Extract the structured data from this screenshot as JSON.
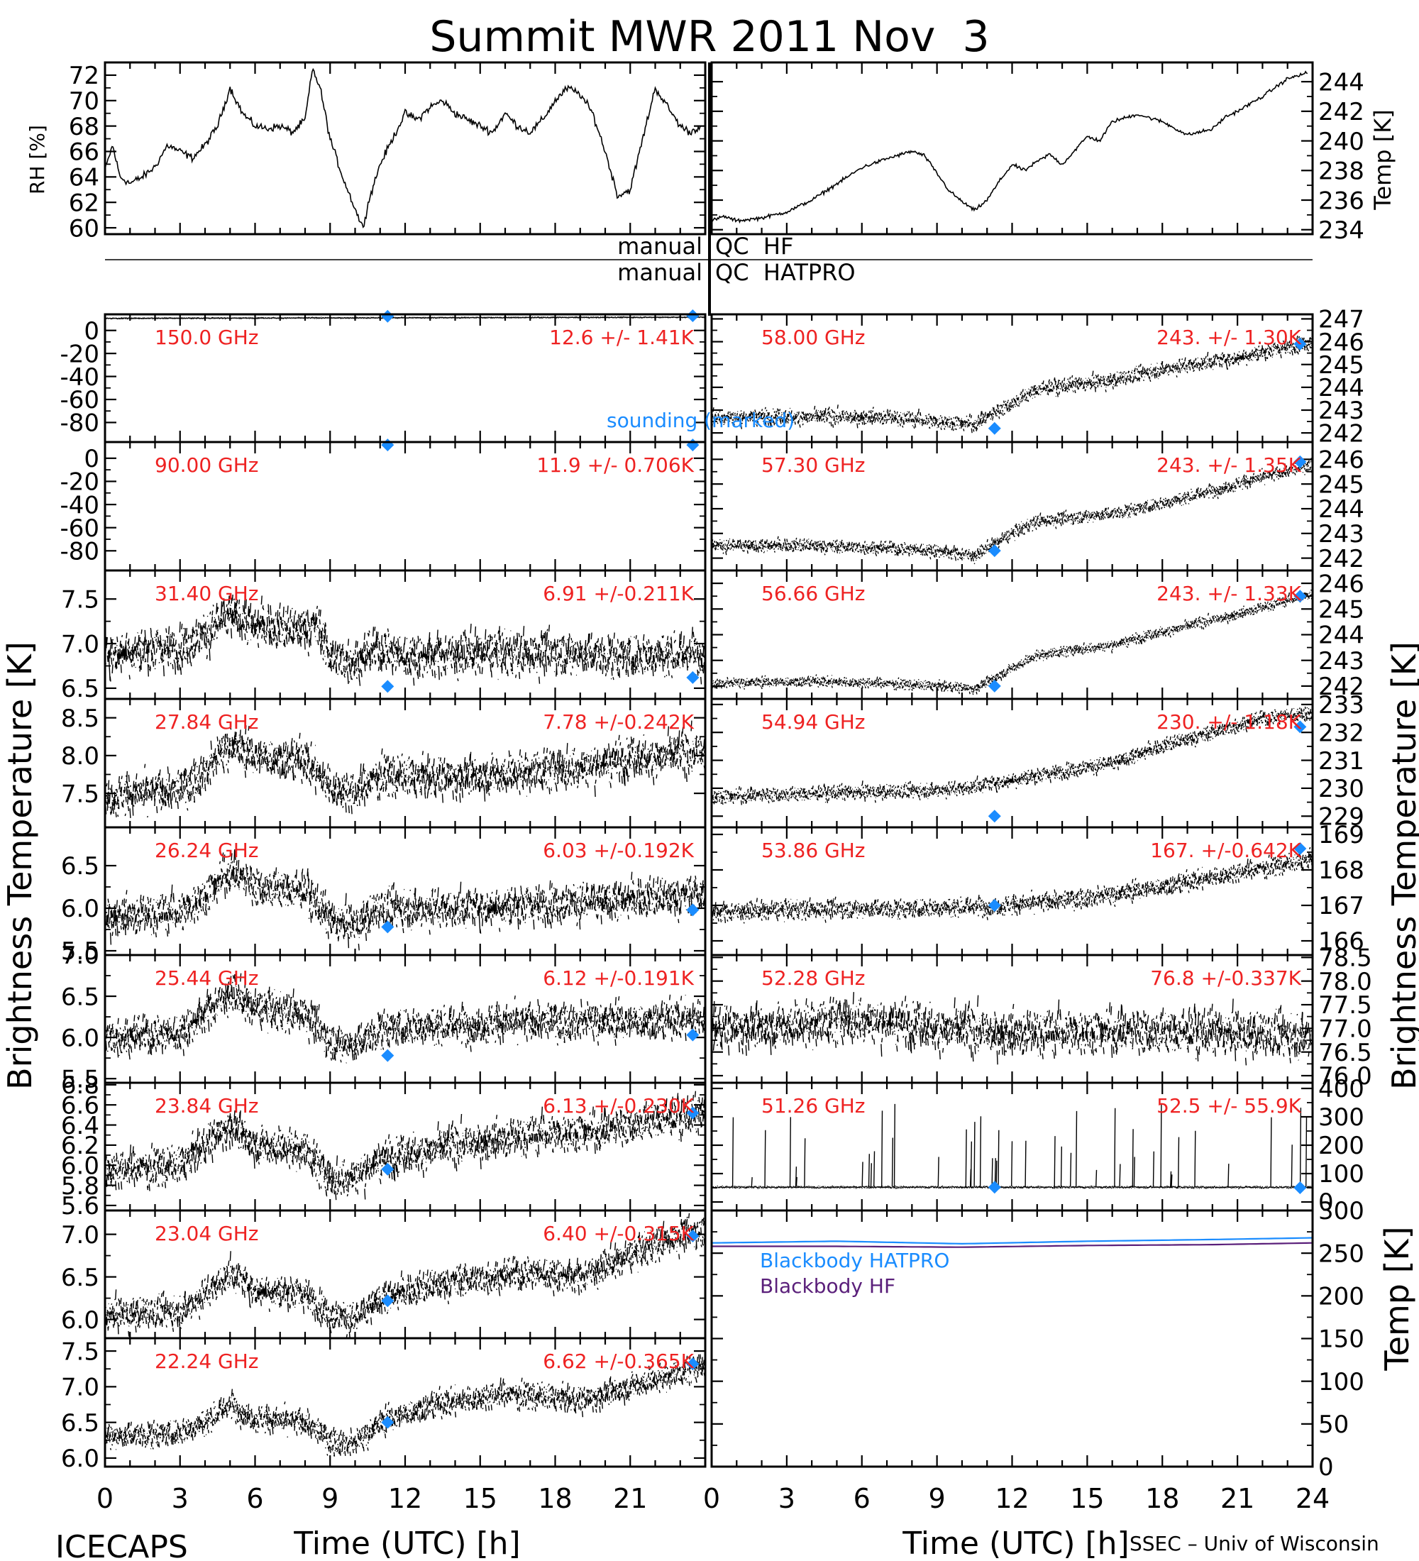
{
  "figure": {
    "title": "Summit MWR 2011 Nov  3",
    "footer_left": "ICECAPS",
    "footer_right": "SSEC – Univ of Wisconsin",
    "xlabel_left": "Time (UTC) [h]",
    "xlabel_right": "Time (UTC) [h]",
    "ylabel_left": "Brightness Temperature [K]",
    "ylabel_right": "Brightness Temperature [K]",
    "qc_labels": [
      "manual",
      "QC  HF",
      "manual",
      "QC  HATPRO"
    ],
    "sounding_label": "sounding (marked)",
    "colors": {
      "data": "#000000",
      "annotation": "#ee2222",
      "sounding": "#1a8cff",
      "blackbody_hatpro": "#1a8cff",
      "blackbody_hf": "#5a1f7a"
    }
  },
  "chart_data": [
    {
      "type": "line",
      "panel": "rh",
      "ylabel": "RH [%]",
      "xlim": [
        0,
        24
      ],
      "ylim": [
        59.5,
        73
      ],
      "yticks": [
        60,
        62,
        64,
        66,
        68,
        70,
        72
      ],
      "x": [
        0,
        0.3,
        0.6,
        1.0,
        1.5,
        2.0,
        2.5,
        3.0,
        3.5,
        4.0,
        4.5,
        5.0,
        5.5,
        6.0,
        6.5,
        7.0,
        7.5,
        8.0,
        8.3,
        8.6,
        9.0,
        9.5,
        10.0,
        10.3,
        10.6,
        11.0,
        11.5,
        12.0,
        12.5,
        13.0,
        13.5,
        14.0,
        14.5,
        15.0,
        15.5,
        16.0,
        16.5,
        17.0,
        17.5,
        18.0,
        18.5,
        19.0,
        19.5,
        20.0,
        20.5,
        21.0,
        21.5,
        22.0,
        22.5,
        23.0,
        23.4,
        23.8
      ],
      "y": [
        64.5,
        66.5,
        64,
        63.5,
        64,
        64.8,
        66.5,
        66,
        65.5,
        66.5,
        68,
        71,
        69,
        68,
        67.8,
        68,
        67.5,
        68.5,
        72.5,
        71,
        67,
        64,
        61.5,
        60,
        62.5,
        65,
        67,
        69,
        68.5,
        69.5,
        70,
        69,
        68.5,
        68,
        67.5,
        69,
        68,
        67.5,
        68.5,
        70,
        71,
        70.5,
        69,
        66,
        62.5,
        63,
        67,
        71,
        69.5,
        68,
        67.5,
        68
      ]
    },
    {
      "type": "line",
      "panel": "temp",
      "ylabel": "Temp [K]",
      "xlim": [
        0,
        24
      ],
      "ylim": [
        233.7,
        245.3
      ],
      "yticks": [
        234,
        236,
        238,
        240,
        242,
        244
      ],
      "x": [
        0,
        0.5,
        1.0,
        2.0,
        3.0,
        4.0,
        5.0,
        6.0,
        7.0,
        8.0,
        8.5,
        9.0,
        9.5,
        10.0,
        10.5,
        11.0,
        11.5,
        12.0,
        12.5,
        13.0,
        13.5,
        14.0,
        15.0,
        15.5,
        16.0,
        17.0,
        18.0,
        19.0,
        20.0,
        20.5,
        21.0,
        22.0,
        23.0,
        23.8
      ],
      "y": [
        234.6,
        234.9,
        234.6,
        234.8,
        235.2,
        236.0,
        237.1,
        238.2,
        238.8,
        239.3,
        239.0,
        237.8,
        236.6,
        235.9,
        235.3,
        236.0,
        237.3,
        238.4,
        238.0,
        238.6,
        239.1,
        238.4,
        240.3,
        240.0,
        241.3,
        241.8,
        241.3,
        240.4,
        240.8,
        241.6,
        242.0,
        243.0,
        244.2,
        244.6
      ]
    },
    {
      "type": "line",
      "panel": "ch-150.00",
      "channel": "150.0 GHz",
      "stats": "12.6 +/-  1.41K",
      "ylim": [
        -97,
        14
      ],
      "yticks": [
        0,
        -20,
        -40,
        -60,
        -80
      ],
      "base": [
        [
          0,
          10.5
        ],
        [
          24,
          11.5
        ]
      ],
      "noise": 0.4,
      "sounding": [
        [
          11.3,
          12.3
        ],
        [
          23.5,
          12.8
        ]
      ]
    },
    {
      "type": "line",
      "panel": "ch-90.00",
      "channel": "90.00 GHz",
      "stats": "11.9 +/- 0.706K",
      "ylim": [
        -97,
        14
      ],
      "yticks": [
        0,
        -20,
        -40,
        -60,
        -80
      ],
      "base": [],
      "noise": 0,
      "sounding": [
        [
          11.3,
          11.5
        ],
        [
          23.5,
          11.5
        ]
      ]
    },
    {
      "type": "line",
      "panel": "ch-31.40",
      "channel": "31.40 GHz",
      "stats": "6.91 +/-0.211K",
      "ylim": [
        6.38,
        7.82
      ],
      "yticks": [
        6.5,
        7.0,
        7.5
      ],
      "base": [
        [
          0,
          6.9
        ],
        [
          3,
          6.95
        ],
        [
          4,
          7.1
        ],
        [
          5,
          7.35
        ],
        [
          6,
          7.2
        ],
        [
          7.5,
          7.15
        ],
        [
          8.5,
          7.2
        ],
        [
          9,
          6.85
        ],
        [
          10,
          6.8
        ],
        [
          11,
          6.95
        ],
        [
          12,
          6.85
        ],
        [
          15,
          6.9
        ],
        [
          18,
          6.9
        ],
        [
          21,
          6.85
        ],
        [
          24,
          6.9
        ]
      ],
      "noise": 0.18,
      "sounding": [
        [
          11.3,
          6.52
        ],
        [
          23.5,
          6.62
        ]
      ]
    },
    {
      "type": "line",
      "panel": "ch-27.84",
      "channel": "27.84 GHz",
      "stats": "7.78 +/-0.242K",
      "ylim": [
        7.05,
        8.75
      ],
      "yticks": [
        7.5,
        8.0,
        8.5
      ],
      "base": [
        [
          0,
          7.45
        ],
        [
          3,
          7.55
        ],
        [
          4,
          7.8
        ],
        [
          5,
          8.15
        ],
        [
          6,
          8.0
        ],
        [
          8,
          7.95
        ],
        [
          9,
          7.6
        ],
        [
          10,
          7.5
        ],
        [
          11,
          7.75
        ],
        [
          13,
          7.7
        ],
        [
          16,
          7.75
        ],
        [
          19,
          7.85
        ],
        [
          21,
          7.95
        ],
        [
          24,
          8.05
        ]
      ],
      "noise": 0.2,
      "sounding": []
    },
    {
      "type": "line",
      "panel": "ch-26.24",
      "channel": "26.24 GHz",
      "stats": "6.03 +/-0.192K",
      "ylim": [
        5.45,
        6.95
      ],
      "yticks": [
        5.5,
        6.0,
        6.5
      ],
      "base": [
        [
          0,
          5.9
        ],
        [
          3,
          5.95
        ],
        [
          4,
          6.15
        ],
        [
          5,
          6.45
        ],
        [
          6,
          6.25
        ],
        [
          8,
          6.2
        ],
        [
          9,
          5.85
        ],
        [
          10,
          5.8
        ],
        [
          11,
          6.0
        ],
        [
          14,
          6.0
        ],
        [
          18,
          6.05
        ],
        [
          21,
          6.1
        ],
        [
          24,
          6.15
        ]
      ],
      "noise": 0.17,
      "sounding": [
        [
          11.3,
          5.78
        ],
        [
          23.5,
          5.98
        ]
      ]
    },
    {
      "type": "line",
      "panel": "ch-25.44",
      "channel": "25.44 GHz",
      "stats": "6.12 +/-0.191K",
      "ylim": [
        5.45,
        7.0
      ],
      "yticks": [
        5.5,
        6.0,
        6.5,
        7.0
      ],
      "base": [
        [
          0,
          6.0
        ],
        [
          3,
          6.05
        ],
        [
          4,
          6.3
        ],
        [
          5,
          6.55
        ],
        [
          6,
          6.35
        ],
        [
          8,
          6.3
        ],
        [
          9,
          5.95
        ],
        [
          10,
          5.9
        ],
        [
          11,
          6.1
        ],
        [
          14,
          6.15
        ],
        [
          18,
          6.2
        ],
        [
          21,
          6.2
        ],
        [
          24,
          6.25
        ]
      ],
      "noise": 0.17,
      "sounding": [
        [
          11.3,
          5.78
        ],
        [
          23.5,
          6.03
        ]
      ]
    },
    {
      "type": "line",
      "panel": "ch-23.84",
      "channel": "23.84 GHz",
      "stats": "6.13 +/-0.230K",
      "ylim": [
        5.55,
        6.82
      ],
      "yticks": [
        5.6,
        5.8,
        6.0,
        6.2,
        6.4,
        6.6,
        6.8
      ],
      "base": [
        [
          0,
          5.95
        ],
        [
          3,
          6.0
        ],
        [
          4,
          6.2
        ],
        [
          5,
          6.4
        ],
        [
          6,
          6.2
        ],
        [
          8,
          6.15
        ],
        [
          9,
          5.85
        ],
        [
          10,
          5.9
        ],
        [
          11,
          6.05
        ],
        [
          14,
          6.2
        ],
        [
          17,
          6.3
        ],
        [
          20,
          6.35
        ],
        [
          22,
          6.45
        ],
        [
          24,
          6.5
        ]
      ],
      "noise": 0.14,
      "sounding": [
        [
          11.3,
          5.96
        ],
        [
          23.5,
          6.52
        ]
      ]
    },
    {
      "type": "line",
      "panel": "ch-23.04",
      "channel": "23.04 GHz",
      "stats": "6.40 +/-0.315K",
      "ylim": [
        5.78,
        7.28
      ],
      "yticks": [
        6.0,
        6.5,
        7.0
      ],
      "base": [
        [
          0,
          6.05
        ],
        [
          3,
          6.1
        ],
        [
          4,
          6.3
        ],
        [
          5,
          6.55
        ],
        [
          6,
          6.35
        ],
        [
          8,
          6.3
        ],
        [
          9,
          6.05
        ],
        [
          10,
          6.0
        ],
        [
          11,
          6.25
        ],
        [
          14,
          6.45
        ],
        [
          17,
          6.55
        ],
        [
          19,
          6.5
        ],
        [
          21,
          6.75
        ],
        [
          22.5,
          6.95
        ],
        [
          24,
          7.05
        ]
      ],
      "noise": 0.14,
      "sounding": [
        [
          11.3,
          6.22
        ],
        [
          23.5,
          6.98
        ]
      ]
    },
    {
      "type": "line",
      "panel": "ch-22.24",
      "channel": "22.24 GHz",
      "stats": "6.62 +/-0.365K",
      "ylim": [
        5.88,
        7.68
      ],
      "yticks": [
        6.0,
        6.5,
        7.0,
        7.5
      ],
      "base": [
        [
          0,
          6.3
        ],
        [
          3,
          6.35
        ],
        [
          4,
          6.5
        ],
        [
          5,
          6.75
        ],
        [
          6,
          6.55
        ],
        [
          8,
          6.5
        ],
        [
          9,
          6.25
        ],
        [
          10,
          6.2
        ],
        [
          11,
          6.5
        ],
        [
          13,
          6.75
        ],
        [
          16,
          6.9
        ],
        [
          18,
          6.85
        ],
        [
          19,
          6.8
        ],
        [
          21,
          7.0
        ],
        [
          24,
          7.3
        ]
      ],
      "noise": 0.14,
      "sounding": [
        [
          11.3,
          6.5
        ],
        [
          23.5,
          7.32
        ]
      ]
    },
    {
      "type": "line",
      "panel": "ch-58.00",
      "channel": "58.00 GHz",
      "stats": "243. +/- 1.30K",
      "ylim": [
        241.6,
        247.2
      ],
      "yticks": [
        242,
        243,
        244,
        245,
        246,
        247
      ],
      "base": [
        [
          0,
          242.7
        ],
        [
          4,
          242.7
        ],
        [
          7,
          242.7
        ],
        [
          9,
          242.5
        ],
        [
          10.5,
          242.4
        ],
        [
          12,
          243.3
        ],
        [
          13,
          243.9
        ],
        [
          16,
          244.3
        ],
        [
          18,
          244.8
        ],
        [
          21,
          245.3
        ],
        [
          24,
          246.0
        ]
      ],
      "noise": 0.25,
      "sounding": [
        [
          11.3,
          242.2
        ],
        [
          23.5,
          245.9
        ]
      ]
    },
    {
      "type": "line",
      "panel": "ch-57.30",
      "channel": "57.30 GHz",
      "stats": "243. +/- 1.35K",
      "ylim": [
        241.5,
        246.7
      ],
      "yticks": [
        242,
        243,
        244,
        245,
        246
      ],
      "base": [
        [
          0,
          242.5
        ],
        [
          4,
          242.5
        ],
        [
          7,
          242.4
        ],
        [
          9,
          242.3
        ],
        [
          10.5,
          242.1
        ],
        [
          12,
          243.0
        ],
        [
          13,
          243.5
        ],
        [
          16,
          243.8
        ],
        [
          18,
          244.2
        ],
        [
          21,
          245.0
        ],
        [
          24,
          245.8
        ]
      ],
      "noise": 0.2,
      "sounding": [
        [
          11.3,
          242.3
        ],
        [
          23.5,
          245.9
        ]
      ]
    },
    {
      "type": "line",
      "panel": "ch-56.66",
      "channel": "56.66 GHz",
      "stats": "243. +/- 1.33K",
      "ylim": [
        241.5,
        246.5
      ],
      "yticks": [
        242,
        243,
        244,
        245,
        246
      ],
      "base": [
        [
          0,
          242.1
        ],
        [
          4,
          242.2
        ],
        [
          7,
          242.1
        ],
        [
          9,
          242.0
        ],
        [
          10.5,
          241.9
        ],
        [
          12,
          242.7
        ],
        [
          13,
          243.2
        ],
        [
          16,
          243.6
        ],
        [
          18,
          244.1
        ],
        [
          21,
          244.8
        ],
        [
          24,
          245.6
        ]
      ],
      "noise": 0.15,
      "sounding": [
        [
          11.3,
          242.0
        ],
        [
          23.5,
          245.5
        ]
      ]
    },
    {
      "type": "line",
      "panel": "ch-54.94",
      "channel": "54.94 GHz",
      "stats": "230. +/- 1.18K",
      "ylim": [
        228.6,
        233.2
      ],
      "yticks": [
        229,
        230,
        231,
        232,
        233
      ],
      "base": [
        [
          0,
          229.7
        ],
        [
          4,
          229.8
        ],
        [
          8,
          229.9
        ],
        [
          10,
          230.0
        ],
        [
          12,
          230.3
        ],
        [
          14,
          230.6
        ],
        [
          16,
          230.9
        ],
        [
          18,
          231.5
        ],
        [
          20,
          232.0
        ],
        [
          22,
          232.5
        ],
        [
          24,
          232.7
        ]
      ],
      "noise": 0.2,
      "sounding": [
        [
          11.3,
          229.0
        ],
        [
          23.5,
          232.2
        ]
      ]
    },
    {
      "type": "line",
      "panel": "ch-53.86",
      "channel": "53.86 GHz",
      "stats": "167. +/-0.642K",
      "ylim": [
        165.6,
        169.2
      ],
      "yticks": [
        166,
        167,
        168,
        169
      ],
      "base": [
        [
          0,
          166.8
        ],
        [
          4,
          166.9
        ],
        [
          8,
          166.9
        ],
        [
          12,
          167.0
        ],
        [
          16,
          167.3
        ],
        [
          20,
          167.8
        ],
        [
          24,
          168.3
        ]
      ],
      "noise": 0.2,
      "sounding": [
        [
          11.3,
          167.0
        ],
        [
          23.5,
          168.6
        ]
      ]
    },
    {
      "type": "line",
      "panel": "ch-52.28",
      "channel": "52.28 GHz",
      "stats": "76.8 +/-0.337K",
      "ylim": [
        75.85,
        78.55
      ],
      "yticks": [
        76.0,
        76.5,
        77.0,
        77.5,
        78.0,
        78.5
      ],
      "base": [
        [
          0,
          77.0
        ],
        [
          3,
          77.05
        ],
        [
          6,
          77.2
        ],
        [
          9,
          77.0
        ],
        [
          12,
          76.9
        ],
        [
          16,
          76.95
        ],
        [
          20,
          76.9
        ],
        [
          24,
          76.85
        ]
      ],
      "noise": 0.35,
      "sounding": []
    },
    {
      "type": "line",
      "panel": "ch-51.26",
      "channel": "51.26 GHz",
      "stats": "52.5 +/- 55.9K",
      "ylim": [
        -30,
        420
      ],
      "yticks": [
        0,
        100,
        200,
        300,
        400
      ],
      "base": [
        [
          0,
          52
        ],
        [
          24,
          52
        ]
      ],
      "noise": 3,
      "sounding": [
        [
          11.3,
          52
        ],
        [
          23.5,
          50
        ]
      ]
    },
    {
      "type": "line",
      "panel": "blackbody",
      "ylabel": "Temp [K]",
      "ylim": [
        0,
        300
      ],
      "yticks": [
        0,
        50,
        100,
        150,
        200,
        250,
        300
      ],
      "series": [
        {
          "name": "Blackbody HATPRO",
          "color": "#1a8cff",
          "x": [
            0,
            5,
            10,
            15,
            20,
            24
          ],
          "y": [
            262,
            264,
            261,
            264,
            266,
            268
          ]
        },
        {
          "name": "Blackbody HF",
          "color": "#5a1f7a",
          "x": [
            0,
            5,
            10,
            15,
            20,
            24
          ],
          "y": [
            258,
            258,
            257,
            259,
            260,
            262
          ]
        }
      ]
    }
  ],
  "axis": {
    "xticks": [
      0,
      3,
      6,
      9,
      12,
      15,
      18,
      21,
      24
    ],
    "xtick_labels_left": [
      "0",
      "3",
      "6",
      "9",
      "12",
      "15",
      "18",
      "21"
    ],
    "xtick_labels_right": [
      "0",
      "3",
      "6",
      "9",
      "12",
      "15",
      "18",
      "21",
      "24"
    ]
  }
}
